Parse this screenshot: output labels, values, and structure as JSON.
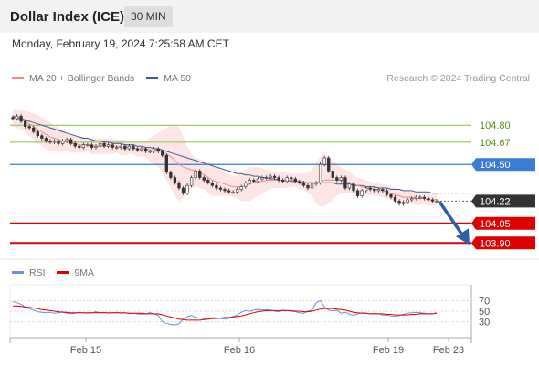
{
  "header": {
    "title": "Dollar Index (ICE)",
    "timeframe": "30 MIN"
  },
  "timestamp": "Monday, February 19, 2024 7:25:58 AM CET",
  "legend": {
    "ma20_label": "MA 20 + Bollinger Bands",
    "ma50_label": "MA 50",
    "rsi_label": "RSI",
    "rsi_ma_label": "9MA"
  },
  "research": "Research © 2024 Trading Central",
  "colors": {
    "ma20": "#f08c8c",
    "ma50": "#3c5a9a",
    "bollinger": "#fde2e2",
    "resistance": "#8cbf4a",
    "pivot": "#3a7bd5",
    "support": "#e00000",
    "last_price": "#333333",
    "arrow": "#2c5ea8",
    "rsi": "#6f8fd8",
    "rsi_ma": "#e00000"
  },
  "chart_data": [
    {
      "type": "candlestick",
      "title": "Dollar Index (ICE)",
      "timeframe": "30 MIN",
      "x_ticks": [
        "Feb 15",
        "Feb 16",
        "Feb 19",
        "Feb 23"
      ],
      "ylim": [
        103.86,
        104.92
      ],
      "last_price": "104.22",
      "levels": [
        {
          "value": "104.80",
          "kind": "resistance"
        },
        {
          "value": "104.67",
          "kind": "resistance"
        },
        {
          "value": "104.50",
          "kind": "pivot"
        },
        {
          "value": "104.05",
          "kind": "support"
        },
        {
          "value": "103.90",
          "kind": "support"
        }
      ],
      "forecast": "down",
      "close": [
        104.85,
        104.87,
        104.83,
        104.79,
        104.78,
        104.75,
        104.72,
        104.7,
        104.68,
        104.67,
        104.68,
        104.66,
        104.68,
        104.69,
        104.66,
        104.64,
        104.63,
        104.65,
        104.65,
        104.63,
        104.64,
        104.66,
        104.64,
        104.65,
        104.63,
        104.63,
        104.64,
        104.62,
        104.64,
        104.62,
        104.61,
        104.62,
        104.6,
        104.6,
        104.62,
        104.6,
        104.57,
        104.44,
        104.4,
        104.36,
        104.32,
        104.28,
        104.34,
        104.4,
        104.45,
        104.4,
        104.38,
        104.36,
        104.34,
        104.32,
        104.31,
        104.3,
        104.29,
        104.29,
        104.31,
        104.33,
        104.36,
        104.38,
        104.37,
        104.39,
        104.4,
        104.4,
        104.41,
        104.4,
        104.38,
        104.37,
        104.4,
        104.39,
        104.37,
        104.36,
        104.34,
        104.32,
        104.35,
        104.36,
        104.5,
        104.55,
        104.45,
        104.4,
        104.38,
        104.4,
        104.32,
        104.35,
        104.3,
        104.26,
        104.3,
        104.32,
        104.31,
        104.3,
        104.31,
        104.3,
        104.27,
        104.25,
        104.22,
        104.2,
        104.21,
        104.23,
        104.24,
        104.25,
        104.25,
        104.24,
        104.23,
        104.22,
        104.22
      ],
      "ma20": [
        104.86,
        104.85,
        104.84,
        104.83,
        104.81,
        104.79,
        104.77,
        104.75,
        104.73,
        104.71,
        104.7,
        104.69,
        104.68,
        104.67,
        104.66,
        104.66,
        104.65,
        104.65,
        104.65,
        104.64,
        104.64,
        104.64,
        104.64,
        104.64,
        104.64,
        104.64,
        104.63,
        104.63,
        104.63,
        104.63,
        104.62,
        104.62,
        104.62,
        104.61,
        104.61,
        104.61,
        104.6,
        104.58,
        104.56,
        104.53,
        104.5,
        104.48,
        104.47,
        104.46,
        104.45,
        104.44,
        104.42,
        104.4,
        104.38,
        104.37,
        104.36,
        104.35,
        104.34,
        104.33,
        104.33,
        104.33,
        104.34,
        104.35,
        104.36,
        104.37,
        104.37,
        104.38,
        104.38,
        104.38,
        104.38,
        104.38,
        104.38,
        104.38,
        104.38,
        104.37,
        104.37,
        104.36,
        104.36,
        104.36,
        104.37,
        104.38,
        104.38,
        104.38,
        104.38,
        104.38,
        104.37,
        104.36,
        104.35,
        104.34,
        104.33,
        104.32,
        104.32,
        104.31,
        104.31,
        104.3,
        104.29,
        104.28,
        104.27,
        104.26,
        104.25,
        104.25,
        104.25,
        104.24,
        104.24,
        104.24,
        104.23,
        104.23,
        104.23
      ],
      "ma50": [
        104.87,
        104.86,
        104.85,
        104.84,
        104.83,
        104.82,
        104.81,
        104.8,
        104.79,
        104.78,
        104.77,
        104.76,
        104.75,
        104.74,
        104.73,
        104.72,
        104.71,
        104.7,
        104.7,
        104.69,
        104.68,
        104.68,
        104.67,
        104.67,
        104.66,
        104.66,
        104.66,
        104.65,
        104.65,
        104.65,
        104.64,
        104.64,
        104.63,
        104.63,
        104.62,
        104.62,
        104.61,
        104.6,
        104.59,
        104.58,
        104.57,
        104.56,
        104.55,
        104.54,
        104.53,
        104.52,
        104.51,
        104.5,
        104.49,
        104.48,
        104.47,
        104.46,
        104.45,
        104.44,
        104.43,
        104.43,
        104.42,
        104.42,
        104.41,
        104.41,
        104.4,
        104.4,
        104.39,
        104.39,
        104.38,
        104.38,
        104.38,
        104.37,
        104.37,
        104.37,
        104.36,
        104.36,
        104.36,
        104.36,
        104.36,
        104.36,
        104.36,
        104.36,
        104.35,
        104.35,
        104.35,
        104.35,
        104.34,
        104.34,
        104.34,
        104.33,
        104.33,
        104.33,
        104.32,
        104.32,
        104.32,
        104.31,
        104.31,
        104.31,
        104.3,
        104.3,
        104.3,
        104.29,
        104.29,
        104.29,
        104.29,
        104.28,
        104.28
      ],
      "bb_upper": [
        104.92,
        104.92,
        104.92,
        104.91,
        104.9,
        104.89,
        104.88,
        104.86,
        104.84,
        104.82,
        104.8,
        104.78,
        104.76,
        104.74,
        104.73,
        104.72,
        104.71,
        104.71,
        104.7,
        104.7,
        104.7,
        104.7,
        104.7,
        104.7,
        104.7,
        104.69,
        104.69,
        104.69,
        104.68,
        104.68,
        104.68,
        104.68,
        104.68,
        104.7,
        104.72,
        104.74,
        104.76,
        104.78,
        104.8,
        104.8,
        104.78,
        104.72,
        104.64,
        104.58,
        104.55,
        104.54,
        104.53,
        104.52,
        104.5,
        104.48,
        104.46,
        104.44,
        104.42,
        104.41,
        104.42,
        104.44,
        104.46,
        104.48,
        104.48,
        104.48,
        104.47,
        104.46,
        104.45,
        104.44,
        104.44,
        104.44,
        104.44,
        104.43,
        104.43,
        104.43,
        104.43,
        104.44,
        104.46,
        104.52,
        104.56,
        104.58,
        104.56,
        104.53,
        104.5,
        104.48,
        104.46,
        104.44,
        104.42,
        104.4,
        104.39,
        104.38,
        104.37,
        104.36,
        104.36,
        104.35,
        104.34,
        104.33,
        104.32,
        104.31,
        104.3,
        104.3,
        104.3,
        104.29,
        104.29,
        104.28,
        104.28,
        104.27,
        104.27
      ],
      "bb_lower": [
        104.8,
        104.78,
        104.76,
        104.75,
        104.72,
        104.69,
        104.66,
        104.64,
        104.62,
        104.6,
        104.6,
        104.6,
        104.6,
        104.6,
        104.59,
        104.59,
        104.59,
        104.59,
        104.6,
        104.58,
        104.58,
        104.58,
        104.58,
        104.58,
        104.58,
        104.59,
        104.57,
        104.57,
        104.58,
        104.58,
        104.56,
        104.56,
        104.56,
        104.52,
        104.5,
        104.48,
        104.44,
        104.38,
        104.32,
        104.26,
        104.22,
        104.24,
        104.28,
        104.31,
        104.33,
        104.32,
        104.31,
        104.28,
        104.26,
        104.26,
        104.26,
        104.26,
        104.26,
        104.25,
        104.24,
        104.22,
        104.22,
        104.22,
        104.24,
        104.26,
        104.27,
        104.3,
        104.31,
        104.32,
        104.32,
        104.32,
        104.32,
        104.33,
        104.33,
        104.31,
        104.31,
        104.28,
        104.26,
        104.2,
        104.18,
        104.18,
        104.2,
        104.23,
        104.26,
        104.28,
        104.28,
        104.28,
        104.28,
        104.28,
        104.27,
        104.26,
        104.27,
        104.26,
        104.26,
        104.25,
        104.24,
        104.23,
        104.22,
        104.21,
        104.2,
        104.2,
        104.2,
        104.19,
        104.19,
        104.2,
        104.18,
        104.19,
        104.19
      ]
    },
    {
      "type": "line",
      "series": [
        {
          "name": "RSI",
          "values": [
            68,
            66,
            63,
            58,
            55,
            52,
            49,
            48,
            47,
            48,
            46,
            47,
            49,
            46,
            45,
            46,
            48,
            47,
            46,
            47,
            49,
            47,
            48,
            46,
            47,
            48,
            46,
            47,
            45,
            46,
            45,
            44,
            45,
            47,
            45,
            42,
            30,
            27,
            25,
            24,
            26,
            35,
            40,
            42,
            38,
            37,
            36,
            35,
            38,
            37,
            36,
            35,
            36,
            40,
            43,
            48,
            51,
            50,
            52,
            53,
            52,
            53,
            52,
            50,
            49,
            52,
            51,
            50,
            49,
            47,
            46,
            50,
            52,
            66,
            70,
            58,
            52,
            50,
            52,
            46,
            48,
            44,
            42,
            45,
            47,
            46,
            45,
            46,
            45,
            43,
            42,
            41,
            40,
            42,
            44,
            46,
            47,
            48,
            47,
            46,
            45,
            45,
            47
          ]
        },
        {
          "name": "9MA",
          "values": [
            60,
            60,
            59,
            58,
            57,
            56,
            55,
            53,
            52,
            51,
            50,
            49,
            48,
            48,
            47,
            47,
            47,
            47,
            47,
            47,
            47,
            47,
            47,
            47,
            47,
            47,
            47,
            47,
            46,
            46,
            46,
            46,
            45,
            45,
            45,
            45,
            43,
            41,
            39,
            37,
            35,
            34,
            33,
            33,
            33,
            33,
            34,
            35,
            36,
            36,
            37,
            38,
            38,
            39,
            40,
            41,
            43,
            45,
            47,
            49,
            50,
            51,
            51,
            51,
            51,
            51,
            51,
            51,
            50,
            50,
            49,
            49,
            50,
            52,
            54,
            55,
            55,
            55,
            54,
            53,
            52,
            50,
            48,
            47,
            46,
            46,
            45,
            45,
            45,
            45,
            44,
            44,
            43,
            43,
            43,
            43,
            44,
            44,
            45,
            45,
            45,
            45,
            46
          ]
        }
      ],
      "y_ticks": [
        70,
        50,
        30
      ],
      "ylim": [
        0,
        100
      ]
    }
  ],
  "level_labels": [
    "104.80",
    "104.67",
    "104.50",
    "104.22",
    "104.05",
    "103.90"
  ],
  "rsi_tick_labels": [
    "70",
    "50",
    "30"
  ]
}
